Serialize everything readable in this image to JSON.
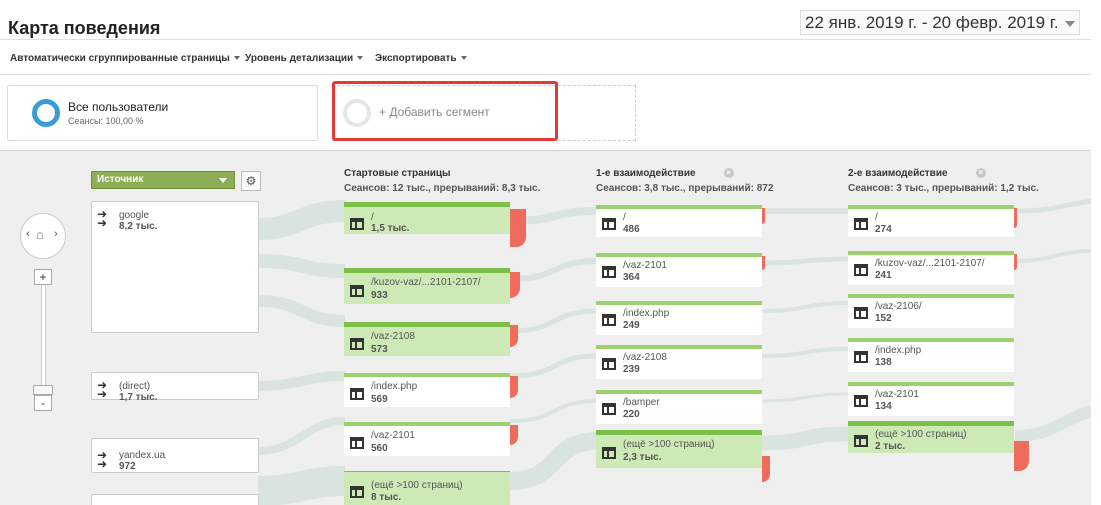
{
  "header": {
    "title": "Карта поведения",
    "date_range": "22 янв. 2019 г. - 20 февр. 2019 г."
  },
  "toolbar": {
    "items": [
      "Автоматически сгруппированные страницы",
      "Уровень детализации",
      "Экспортировать"
    ]
  },
  "segments": {
    "all_users": {
      "label": "Все пользователи",
      "sub": "Сеансы: 100,00 %",
      "ring_color": "#3a9bd9"
    },
    "add": {
      "label": "+ Добавить сегмент"
    }
  },
  "flow": {
    "source_dropdown": "Источник",
    "nav_icons": [
      "chevron-left-icon",
      "home-icon",
      "chevron-right-icon"
    ],
    "zoom": {
      "plus": "+",
      "minus": "-"
    },
    "sources": [
      {
        "name": "google",
        "count": "8,2 тыс."
      },
      {
        "name": "(direct)",
        "count": "1,7 тыс."
      },
      {
        "name": "yandex.ua",
        "count": "972"
      }
    ],
    "columns": [
      {
        "title": "Стартовые страницы",
        "sub": "Сеансов: 12 тыс., прерываний: 8,3 тыс.",
        "closable": false,
        "nodes": [
          {
            "name": "/",
            "count": "1,5 тыс."
          },
          {
            "name": "/kuzov-vaz/...2101-2107/",
            "count": "933"
          },
          {
            "name": "/vaz-2108",
            "count": "573"
          },
          {
            "name": "/index.php",
            "count": "569"
          },
          {
            "name": "/vaz-2101",
            "count": "560"
          },
          {
            "name": "(ещё >100 страниц)",
            "count": "8 тыс."
          }
        ]
      },
      {
        "title": "1-е взаимодействие",
        "sub": "Сеансов: 3,8 тыс., прерываний: 872",
        "closable": true,
        "nodes": [
          {
            "name": "/",
            "count": "486"
          },
          {
            "name": "/vaz-2101",
            "count": "364"
          },
          {
            "name": "/index.php",
            "count": "249"
          },
          {
            "name": "/vaz-2108",
            "count": "239"
          },
          {
            "name": "/bamper",
            "count": "220"
          },
          {
            "name": "(ещё >100 страниц)",
            "count": "2,3 тыс."
          }
        ]
      },
      {
        "title": "2-е взаимодействие",
        "sub": "Сеансов: 3 тыс., прерываний: 1,2 тыс.",
        "closable": true,
        "nodes": [
          {
            "name": "/",
            "count": "274"
          },
          {
            "name": "/kuzov-vaz/...2101-2107/",
            "count": "241"
          },
          {
            "name": "/vaz-2106/",
            "count": "152"
          },
          {
            "name": "/index.php",
            "count": "138"
          },
          {
            "name": "/vaz-2101",
            "count": "134"
          },
          {
            "name": "(ещё >100 страниц)",
            "count": "2 тыс."
          }
        ]
      }
    ]
  }
}
